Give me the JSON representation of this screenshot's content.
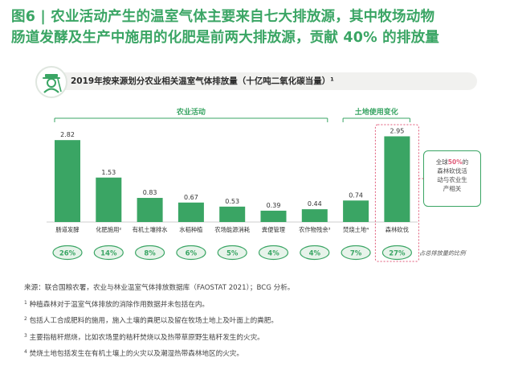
{
  "headline": {
    "line1": "图6 | 农业活动产生的温室气体主要来自七大排放源，其中牧场动物",
    "line2": "肠道发酵及生产中施用的化肥是前两大排放源，贡献 40% 的排放量"
  },
  "panel": {
    "title": "2019年按来源划分农业相关温室气体排放量（十亿吨二氧化碳当量）¹",
    "icon": "farmer-icon"
  },
  "chart_data": {
    "type": "bar",
    "categories": [
      "肠道发酵",
      "化肥施用²",
      "有机土壤排水",
      "水稻种植",
      "农场能源消耗",
      "粪便管理",
      "农作物残余³",
      "焚烧土地⁴",
      "森林砍伐"
    ],
    "values": [
      2.82,
      1.53,
      0.83,
      0.67,
      0.53,
      0.39,
      0.44,
      0.74,
      2.95
    ],
    "value_labels": [
      "2.82",
      "1.53",
      "0.83",
      "0.67",
      "0.53",
      "0.39",
      "0.44",
      "0.74",
      "2.95"
    ],
    "shares": [
      "26%",
      "14%",
      "8%",
      "6%",
      "5%",
      "4%",
      "4%",
      "7%",
      "27%"
    ],
    "share_label": "占总排放量的比例",
    "groups": [
      {
        "label": "农业活动",
        "from": 0,
        "to": 6
      },
      {
        "label": "土地使用变化",
        "from": 7,
        "to": 8
      }
    ],
    "ylim": [
      0,
      3.2
    ],
    "bar_color": "#3aa564",
    "share_fill": "#e7f3ea",
    "share_border": "#3aa564",
    "highlight_border": "#e05a78",
    "highlight_index": 8
  },
  "side_note": {
    "line1_pre": "全球",
    "pct": "50%",
    "line1_post": "的",
    "line2": "森林砍伐活",
    "line3": "动与农业生",
    "line4": "产相关"
  },
  "notes": {
    "source": "来源：联合国粮农署，农业与林业温室气体排放数据库（FAOSTAT 2021）；BCG 分析。",
    "n1_mark": "1",
    "n1": "种植森林对于温室气体排放的消除作用数据并未包括在内。",
    "n2_mark": "2",
    "n2": "包括人工合成肥料的施用，施入土壤的粪肥以及留在牧场土地上及叶面上的粪肥。",
    "n3_mark": "3",
    "n3": "主要指秸秆燃烧，比如农场里的秸秆焚烧以及热带草原野生秸秆发生的火灾。",
    "n4_mark": "4",
    "n4": "焚烧土地包括发生在有机土壤上的火灾以及潮湿热带森林地区的火灾。"
  }
}
